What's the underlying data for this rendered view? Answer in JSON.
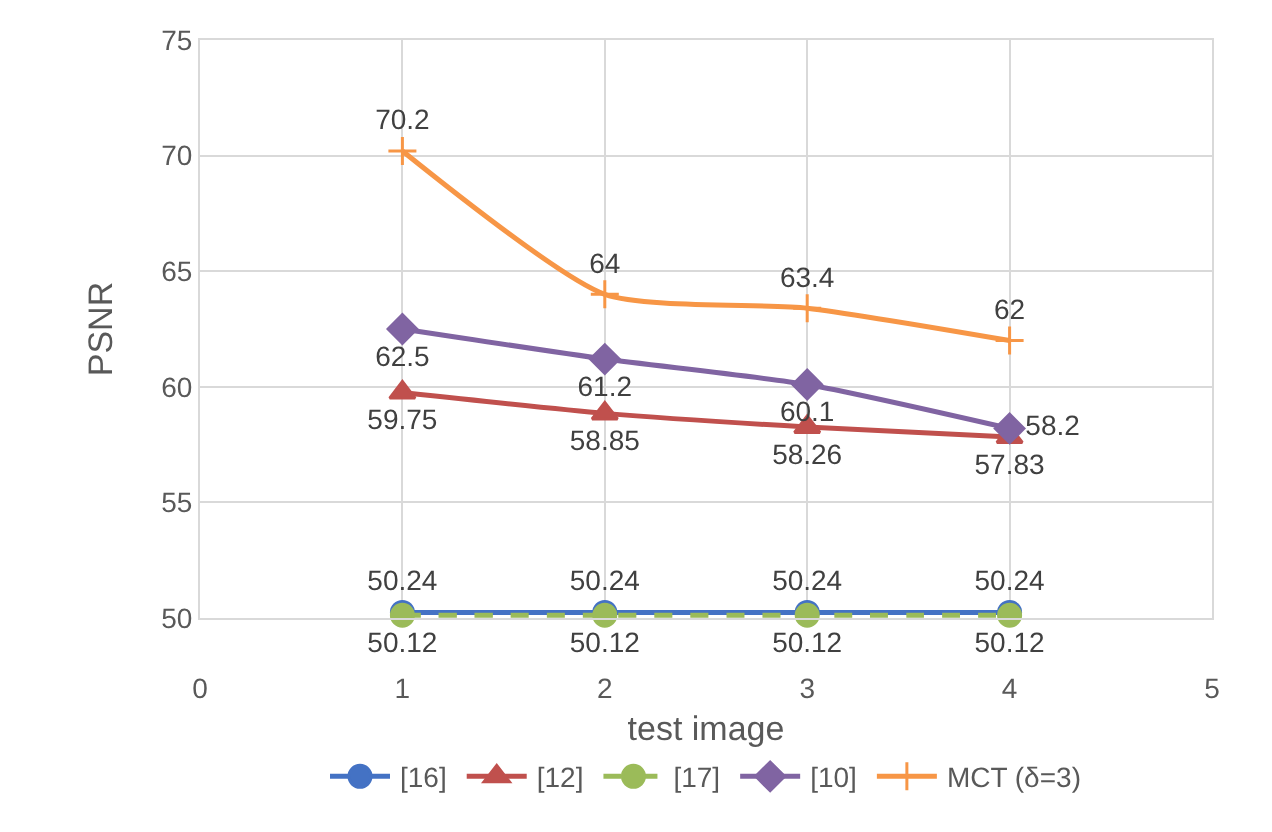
{
  "chart_data": {
    "type": "line",
    "xlabel": "test image",
    "ylabel": "PSNR",
    "x": [
      1,
      2,
      3,
      4
    ],
    "series": [
      {
        "name": "[16]",
        "color": "#4472c4",
        "marker": "circle",
        "line_style": "solid",
        "values": [
          50.24,
          50.24,
          50.24,
          50.24
        ]
      },
      {
        "name": "[12]",
        "color": "#c0504d",
        "marker": "triangle",
        "line_style": "solid",
        "values": [
          59.75,
          58.85,
          58.26,
          57.83
        ]
      },
      {
        "name": "[17]",
        "color": "#9bbb59",
        "marker": "circle",
        "line_style": "dashed",
        "values": [
          50.12,
          50.12,
          50.12,
          50.12
        ]
      },
      {
        "name": "[10]",
        "color": "#8064a2",
        "marker": "diamond",
        "line_style": "solid",
        "values": [
          62.5,
          61.2,
          60.1,
          58.2
        ]
      },
      {
        "name": "MCT (δ=3)",
        "color": "#f79646",
        "marker": "cross",
        "line_style": "solid",
        "values": [
          70.2,
          64,
          63.4,
          62
        ]
      }
    ],
    "xlim": [
      0,
      5
    ],
    "xticks": [
      0,
      1,
      2,
      3,
      4,
      5
    ],
    "ylim": [
      50,
      75
    ],
    "yticks": [
      50,
      55,
      60,
      65,
      70,
      75
    ],
    "grid": true,
    "legend": "bottom",
    "data_labels": true
  }
}
